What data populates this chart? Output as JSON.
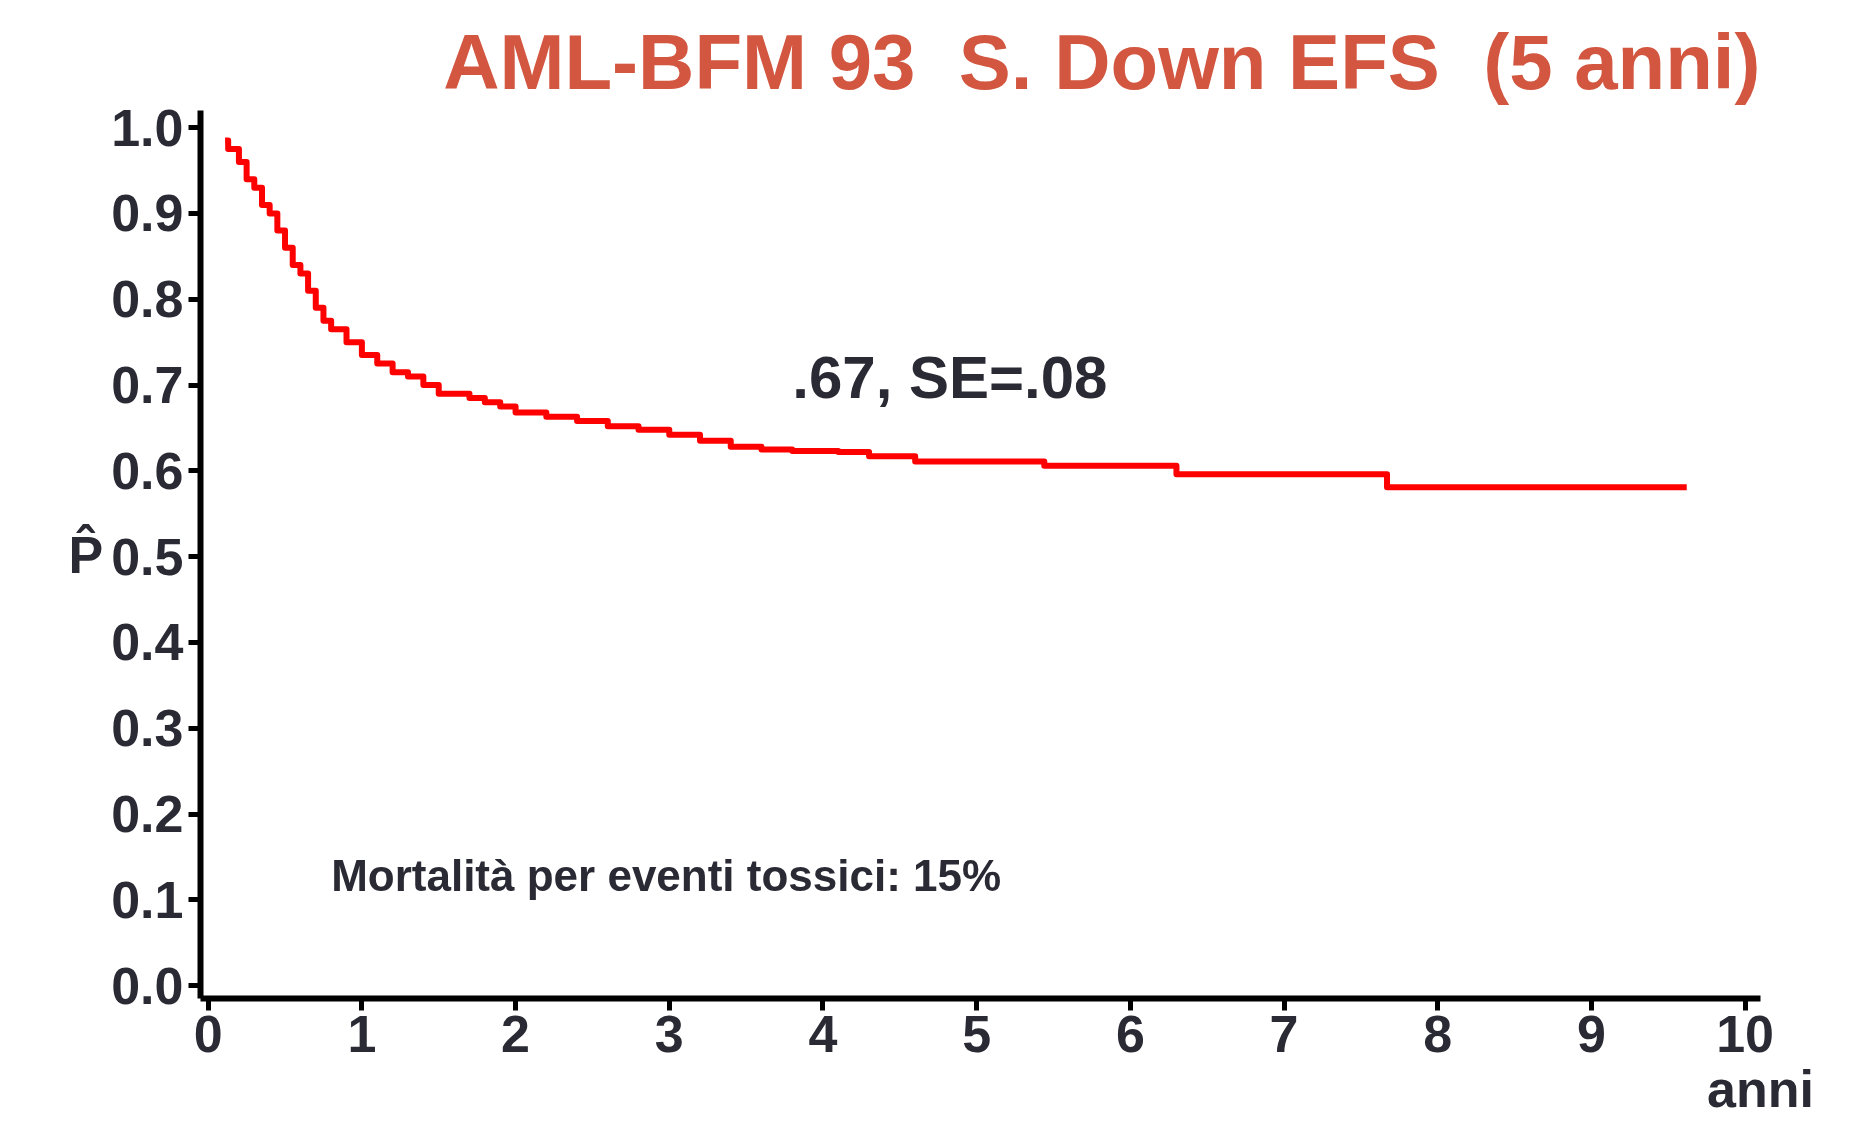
{
  "chart_data": {
    "type": "step",
    "title": "AML-BFM 93  S. Down EFS  (5 anni)",
    "xlabel": "anni",
    "ylabel": "P̂",
    "annotations": [
      ".67, SE=.08",
      "Mortalità per eventi tossici: 15%"
    ],
    "x": [
      0.11,
      0.13,
      0.2,
      0.25,
      0.3,
      0.35,
      0.4,
      0.45,
      0.5,
      0.55,
      0.6,
      0.65,
      0.7,
      0.75,
      0.8,
      0.9,
      1.0,
      1.1,
      1.2,
      1.3,
      1.4,
      1.5,
      1.7,
      1.8,
      1.9,
      2.0,
      2.2,
      2.4,
      2.6,
      2.8,
      3.0,
      3.2,
      3.4,
      3.6,
      3.8,
      4.1,
      4.3,
      4.6,
      5.44,
      6.3,
      7.67,
      9.62
    ],
    "series": [
      {
        "color": "#ff0000",
        "values": [
          0.985,
          0.975,
          0.96,
          0.94,
          0.93,
          0.91,
          0.9,
          0.88,
          0.86,
          0.84,
          0.83,
          0.81,
          0.79,
          0.775,
          0.765,
          0.75,
          0.735,
          0.725,
          0.715,
          0.71,
          0.7,
          0.69,
          0.685,
          0.68,
          0.675,
          0.668,
          0.663,
          0.658,
          0.652,
          0.648,
          0.642,
          0.635,
          0.628,
          0.625,
          0.623,
          0.622,
          0.617,
          0.611,
          0.606,
          0.596,
          0.581,
          0.581
        ]
      }
    ],
    "xlim": [
      -0.05,
      10.1
    ],
    "ylim": [
      -0.015,
      1.02
    ],
    "xticks": [
      0,
      1,
      2,
      3,
      4,
      5,
      6,
      7,
      8,
      9,
      10
    ],
    "yticks": [
      {
        "value": 0,
        "label": "0.0"
      },
      {
        "value": 0.1,
        "label": "0.1"
      },
      {
        "value": 0.2,
        "label": "0.2"
      },
      {
        "value": 0.3,
        "label": "0.3"
      },
      {
        "value": 0.4,
        "label": "0.4"
      },
      {
        "value": 0.5,
        "label": "0.5"
      },
      {
        "value": 0.6,
        "label": "0.6"
      },
      {
        "value": 0.7,
        "label": "0.7"
      },
      {
        "value": 0.8,
        "label": "0.8"
      },
      {
        "value": 0.9,
        "label": "0.9"
      },
      {
        "value": 1,
        "label": "1.0"
      }
    ],
    "grid": false
  }
}
